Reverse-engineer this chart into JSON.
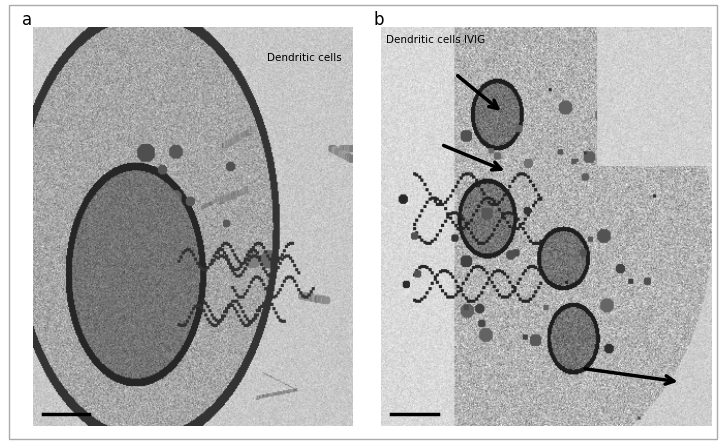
{
  "fig_width": 7.26,
  "fig_height": 4.44,
  "dpi": 100,
  "background_color": "#ffffff",
  "panel_a_label": "a",
  "panel_b_label": "b",
  "panel_a_text": "Dendritic cells",
  "panel_b_text": "Dendritic cells IVIG",
  "label_fontsize": 12,
  "arrow_color": "#000000",
  "scale_bar_color": "#000000",
  "outer_border_linewidth": 1.0
}
